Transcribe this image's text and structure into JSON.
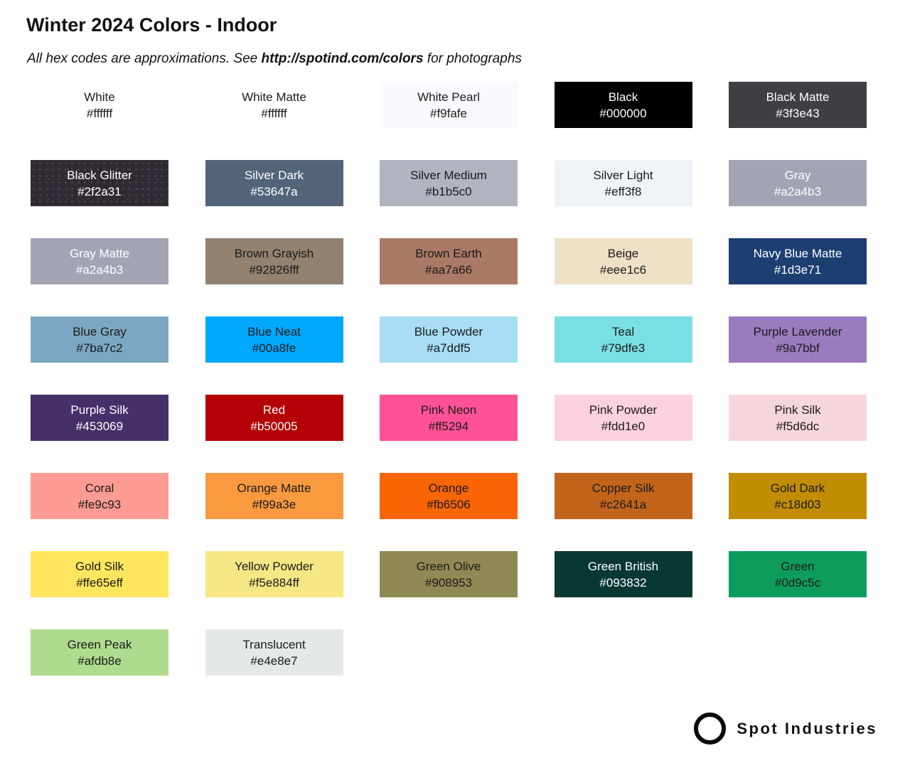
{
  "header": {
    "title": "Winter 2024 Colors - Indoor",
    "subtitle_prefix": "All hex codes are approximations. See ",
    "subtitle_link": "http://spotind.com/colors",
    "subtitle_suffix": " for photographs"
  },
  "footer": {
    "brand": "Spot Industries"
  },
  "text_colors": {
    "dark": "#1b1b1b",
    "light": "#ffffff"
  },
  "swatches": [
    {
      "name": "White",
      "hex": "#ffffff",
      "bg": "#ffffff",
      "text": "dark"
    },
    {
      "name": "White Matte",
      "hex": "#ffffff",
      "bg": "#ffffff",
      "text": "dark"
    },
    {
      "name": "White Pearl",
      "hex": "#f9fafe",
      "bg": "#f9fafe",
      "text": "dark"
    },
    {
      "name": "Black",
      "hex": "#000000",
      "bg": "#000000",
      "text": "light"
    },
    {
      "name": "Black Matte",
      "hex": "#3f3e43",
      "bg": "#3f3e43",
      "text": "light"
    },
    {
      "name": "Black Glitter",
      "hex": "#2f2a31",
      "bg": "#2f2a31",
      "text": "light",
      "texture": "glitter"
    },
    {
      "name": "Silver Dark",
      "hex": "#53647a",
      "bg": "#53647a",
      "text": "light"
    },
    {
      "name": "Silver Medium",
      "hex": "#b1b5c0",
      "bg": "#b1b5c0",
      "text": "dark"
    },
    {
      "name": "Silver Light",
      "hex": "#eff3f8",
      "bg": "#eff3f8",
      "text": "dark"
    },
    {
      "name": "Gray",
      "hex": "#a2a4b3",
      "bg": "#a2a4b3",
      "text": "light"
    },
    {
      "name": "Gray Matte",
      "hex": "#a2a4b3",
      "bg": "#a2a4b3",
      "text": "light"
    },
    {
      "name": "Brown Grayish",
      "hex": "#92826fff",
      "bg": "#92826f",
      "text": "dark"
    },
    {
      "name": "Brown Earth",
      "hex": "#aa7a66",
      "bg": "#aa7a66",
      "text": "dark"
    },
    {
      "name": "Beige",
      "hex": "#eee1c6",
      "bg": "#eee1c6",
      "text": "dark"
    },
    {
      "name": "Navy Blue Matte",
      "hex": "#1d3e71",
      "bg": "#1d3e71",
      "text": "light"
    },
    {
      "name": "Blue Gray",
      "hex": "#7ba7c2",
      "bg": "#7ba7c2",
      "text": "dark"
    },
    {
      "name": "Blue Neat",
      "hex": "#00a8fe",
      "bg": "#00a8fe",
      "text": "dark"
    },
    {
      "name": "Blue Powder",
      "hex": "#a7ddf5",
      "bg": "#a7ddf5",
      "text": "dark"
    },
    {
      "name": "Teal",
      "hex": "#79dfe3",
      "bg": "#79dfe3",
      "text": "dark"
    },
    {
      "name": "Purple Lavender",
      "hex": "#9a7bbf",
      "bg": "#9a7bbf",
      "text": "dark"
    },
    {
      "name": "Purple Silk",
      "hex": "#453069",
      "bg": "#453069",
      "text": "light"
    },
    {
      "name": "Red",
      "hex": "#b50005",
      "bg": "#b50005",
      "text": "light"
    },
    {
      "name": "Pink Neon",
      "hex": "#ff5294",
      "bg": "#ff5294",
      "text": "dark"
    },
    {
      "name": "Pink Powder",
      "hex": "#fdd1e0",
      "bg": "#fdd1e0",
      "text": "dark"
    },
    {
      "name": "Pink Silk",
      "hex": "#f5d6dc",
      "bg": "#f5d6dc",
      "text": "dark"
    },
    {
      "name": "Coral",
      "hex": "#fe9c93",
      "bg": "#fe9c93",
      "text": "dark"
    },
    {
      "name": "Orange Matte",
      "hex": "#f99a3e",
      "bg": "#f99a3e",
      "text": "dark"
    },
    {
      "name": "Orange",
      "hex": "#fb6506",
      "bg": "#fb6506",
      "text": "dark"
    },
    {
      "name": "Copper Silk",
      "hex": "#c2641a",
      "bg": "#c2641a",
      "text": "dark"
    },
    {
      "name": "Gold Dark",
      "hex": "#c18d03",
      "bg": "#c18d03",
      "text": "dark"
    },
    {
      "name": "Gold Silk",
      "hex": "#ffe65eff",
      "bg": "#ffe65e",
      "text": "dark"
    },
    {
      "name": "Yellow Powder",
      "hex": "#f5e884ff",
      "bg": "#f5e884",
      "text": "dark"
    },
    {
      "name": "Green Olive",
      "hex": "#908953",
      "bg": "#908953",
      "text": "dark"
    },
    {
      "name": "Green British",
      "hex": "#093832",
      "bg": "#093832",
      "text": "light"
    },
    {
      "name": "Green",
      "hex": "#0d9c5c",
      "bg": "#0d9c5c",
      "text": "dark"
    },
    {
      "name": "Green Peak",
      "hex": "#afdb8e",
      "bg": "#afdb8e",
      "text": "dark"
    },
    {
      "name": "Translucent",
      "hex": "#e4e8e7",
      "bg": "#e4e8e7",
      "text": "dark"
    }
  ]
}
